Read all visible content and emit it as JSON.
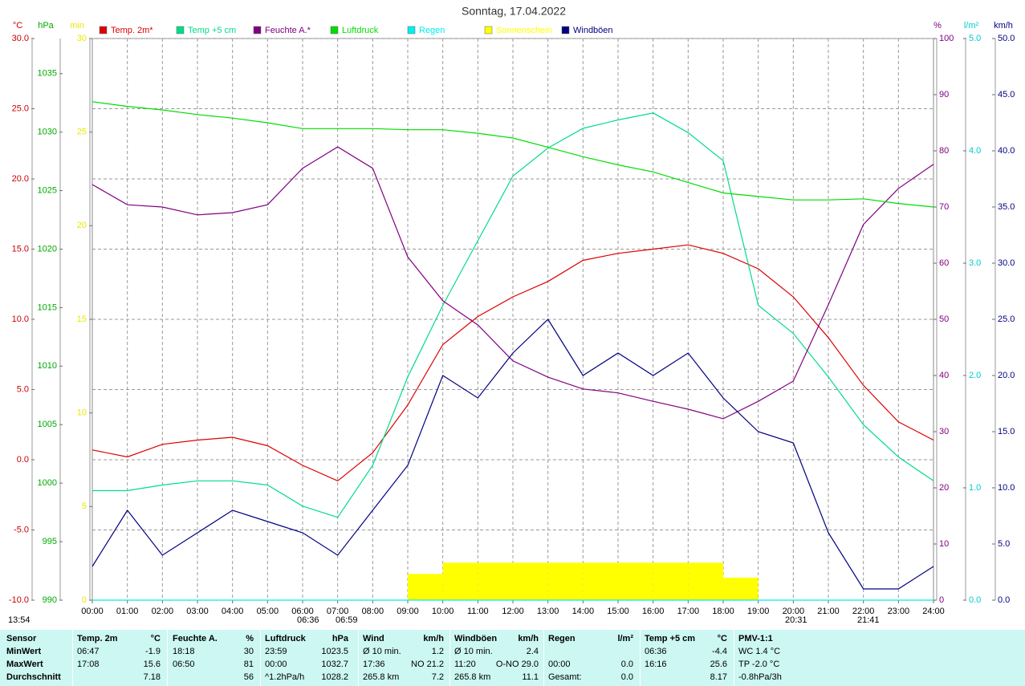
{
  "chart_data": {
    "type": "line",
    "title": "Sonntag, 17.04.2022",
    "x": [
      0,
      1,
      2,
      3,
      4,
      5,
      6,
      7,
      8,
      9,
      10,
      11,
      12,
      13,
      14,
      15,
      16,
      17,
      18,
      19,
      20,
      21,
      22,
      23,
      24
    ],
    "xlim": [
      0,
      24
    ],
    "xticks": [
      {
        "value": 0,
        "label": "00:00"
      },
      {
        "value": 1,
        "label": "01:00"
      },
      {
        "value": 2,
        "label": "02:00"
      },
      {
        "value": 3,
        "label": "03:00"
      },
      {
        "value": 4,
        "label": "04:00"
      },
      {
        "value": 5,
        "label": "05:00"
      },
      {
        "value": 6,
        "label": "06:00"
      },
      {
        "value": 7,
        "label": "07:00"
      },
      {
        "value": 8,
        "label": "08:00"
      },
      {
        "value": 9,
        "label": "09:00"
      },
      {
        "value": 10,
        "label": "10:00"
      },
      {
        "value": 11,
        "label": "11:00"
      },
      {
        "value": 12,
        "label": "12:00"
      },
      {
        "value": 13,
        "label": "13:00"
      },
      {
        "value": 14,
        "label": "14:00"
      },
      {
        "value": 15,
        "label": "15:00"
      },
      {
        "value": 16,
        "label": "16:00"
      },
      {
        "value": 17,
        "label": "17:00"
      },
      {
        "value": 18,
        "label": "18:00"
      },
      {
        "value": 19,
        "label": "19:00"
      },
      {
        "value": 20,
        "label": "20:00"
      },
      {
        "value": 21,
        "label": "21:00"
      },
      {
        "value": 22,
        "label": "22:00"
      },
      {
        "value": 23,
        "label": "23:00"
      },
      {
        "value": 24,
        "label": "24:00"
      }
    ],
    "grid": true,
    "axes": [
      {
        "label": "°C",
        "color": "#cc0000",
        "lim": [
          -10,
          30
        ],
        "ticks": [
          {
            "value": -10,
            "label": "-10.0"
          },
          {
            "value": -5,
            "label": "-5.0"
          },
          {
            "value": 0,
            "label": "0.0"
          },
          {
            "value": 5,
            "label": "5.0"
          },
          {
            "value": 10,
            "label": "10.0"
          },
          {
            "value": 15,
            "label": "15.0"
          },
          {
            "value": 20,
            "label": "20.0"
          },
          {
            "value": 25,
            "label": "25.0"
          },
          {
            "value": 30,
            "label": "30.0"
          }
        ]
      },
      {
        "label": "hPa",
        "color": "#00aa00",
        "lim": [
          990,
          1038
        ],
        "ticks": [
          990,
          995,
          1000,
          1005,
          1010,
          1015,
          1020,
          1025,
          1030,
          1035
        ]
      },
      {
        "label": "min",
        "color": "#e8e800",
        "lim": [
          0,
          30
        ],
        "ticks": [
          0,
          5,
          10,
          15,
          20,
          25,
          30
        ]
      },
      {
        "label": "%",
        "color": "#800080",
        "lim": [
          0,
          100
        ],
        "ticks": [
          0,
          10,
          20,
          30,
          40,
          50,
          60,
          70,
          80,
          90,
          100
        ]
      },
      {
        "label": "l/m²",
        "color": "#00cccc",
        "lim": [
          0,
          5
        ],
        "ticks": [
          {
            "value": 0,
            "label": "0.0"
          },
          {
            "value": 1,
            "label": "1.0"
          },
          {
            "value": 2,
            "label": "2.0"
          },
          {
            "value": 3,
            "label": "3.0"
          },
          {
            "value": 4,
            "label": "4.0"
          },
          {
            "value": 5,
            "label": "5.0"
          }
        ]
      },
      {
        "label": "km/h",
        "color": "#000080",
        "lim": [
          0,
          50
        ],
        "ticks": [
          {
            "value": 0,
            "label": "0.0"
          },
          {
            "value": 5,
            "label": "5.0"
          },
          {
            "value": 10,
            "label": "10.0"
          },
          {
            "value": 15,
            "label": "15.0"
          },
          {
            "value": 20,
            "label": "20.0"
          },
          {
            "value": 25,
            "label": "25.0"
          },
          {
            "value": 30,
            "label": "30.0"
          },
          {
            "value": 35,
            "label": "35.0"
          },
          {
            "value": 40,
            "label": "40.0"
          },
          {
            "value": 45,
            "label": "45.0"
          },
          {
            "value": 50,
            "label": "50.0"
          }
        ]
      }
    ],
    "series": [
      {
        "name": "Temp. 2m*",
        "color": "#dd0000",
        "axis": 0,
        "mark": "line",
        "values": [
          0.7,
          0.2,
          1.1,
          1.4,
          1.6,
          1.0,
          -0.4,
          -1.5,
          0.5,
          3.9,
          8.2,
          10.2,
          11.6,
          12.7,
          14.2,
          14.7,
          15.0,
          15.3,
          14.7,
          13.6,
          11.6,
          8.7,
          5.3,
          2.7,
          1.4
        ]
      },
      {
        "name": "Temp +5 cm",
        "color": "#00dd88",
        "axis": 0,
        "mark": "line",
        "values": [
          -2.2,
          -2.2,
          -1.8,
          -1.5,
          -1.5,
          -1.8,
          -3.3,
          -4.1,
          -0.4,
          5.9,
          11.0,
          15.6,
          20.2,
          22.2,
          23.6,
          24.2,
          24.7,
          23.3,
          21.3,
          11.0,
          9.0,
          5.9,
          2.5,
          0.2,
          -1.5
        ]
      },
      {
        "name": "Feuchte A.*",
        "color": "#800080",
        "axis": 3,
        "mark": "line",
        "values": [
          74,
          70.4,
          70,
          68.6,
          69,
          70.4,
          76.9,
          80.7,
          76.9,
          61.1,
          53.3,
          49,
          42.6,
          39.7,
          37.6,
          36.9,
          35.4,
          34,
          32.3,
          35.4,
          39,
          52.6,
          66.9,
          73.3,
          77.6
        ]
      },
      {
        "name": "Luftdruck",
        "color": "#00dd00",
        "axis": 1,
        "mark": "line",
        "values": [
          1032.6,
          1032.2,
          1031.9,
          1031.5,
          1031.2,
          1030.8,
          1030.3,
          1030.3,
          1030.3,
          1030.2,
          1030.2,
          1029.9,
          1029.5,
          1028.7,
          1027.9,
          1027.2,
          1026.6,
          1025.7,
          1024.8,
          1024.5,
          1024.2,
          1024.2,
          1024.3,
          1023.9,
          1023.6
        ]
      },
      {
        "name": "Regen",
        "color": "#00eeee",
        "axis": 4,
        "mark": "line",
        "values": [
          0,
          0,
          0,
          0,
          0,
          0,
          0,
          0,
          0,
          0,
          0,
          0,
          0,
          0,
          0,
          0,
          0,
          0,
          0,
          0,
          0,
          0,
          0,
          0,
          0
        ]
      },
      {
        "name": "Sonnenschein",
        "color": "#ffff00",
        "axis": 2,
        "mark": "bar",
        "values": [
          0,
          0,
          0,
          0,
          0,
          0,
          0,
          0,
          0,
          1.4,
          2,
          2,
          2,
          2,
          2,
          2,
          2,
          2,
          1.2,
          0,
          0,
          0,
          0,
          0,
          0
        ]
      },
      {
        "name": "Windböen",
        "color": "#000080",
        "axis": 5,
        "mark": "line",
        "values": [
          3,
          8,
          4,
          6,
          8,
          7,
          6,
          4,
          8,
          12,
          20,
          18,
          22,
          25,
          20,
          22,
          20,
          22,
          18,
          15,
          14,
          6,
          1,
          1,
          3
        ]
      }
    ],
    "annotations": [
      "13:54",
      "06:36",
      "06:59",
      "20:31",
      "21:41"
    ]
  },
  "table": {
    "header": [
      "Sensor",
      "Temp. 2m",
      "°C",
      "Feuchte A.",
      "%",
      "Luftdruck",
      "hPa",
      "Wind",
      "km/h",
      "Windböen",
      "km/h",
      "Regen",
      "l/m²",
      "Temp +5 cm",
      "°C",
      "PMV-1:1"
    ],
    "rows": [
      [
        "MinWert",
        "06:47",
        "-1.9",
        "18:18",
        "30",
        "23:59",
        "1023.5",
        "Ø 10 min.",
        "1.2",
        "Ø 10 min.",
        "2.4",
        null,
        null,
        "06:36",
        "-4.4",
        "WC 1.4 °C"
      ],
      [
        "MaxWert",
        "17:08",
        "15.6",
        "06:50",
        "81",
        "00:00",
        "1032.7",
        "17:36",
        "NO 21.2",
        "11:20",
        "O-NO 29.0",
        "00:00",
        "0.0",
        "16:16",
        "25.6",
        "TP -2.0 °C"
      ],
      [
        "Durchschnitt",
        null,
        "7.18",
        null,
        "56",
        "^1.2hPa/h",
        "1028.2",
        "265.8 km",
        "7.2",
        "265.8 km",
        "11.1",
        "Gesamt:",
        "0.0",
        null,
        "8.17",
        "-0.8hPa/3h"
      ]
    ]
  }
}
